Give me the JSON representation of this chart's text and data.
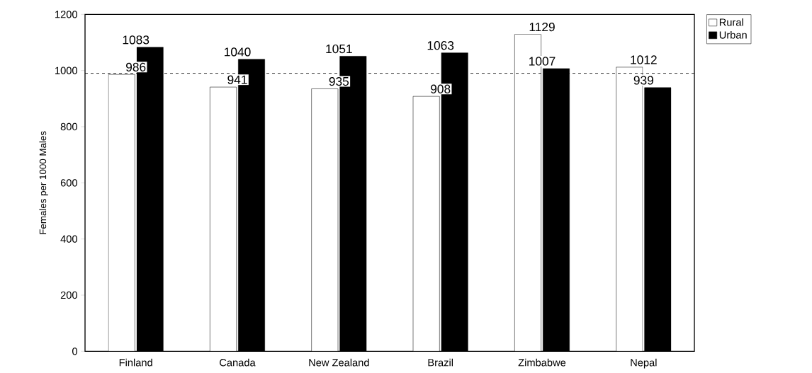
{
  "chart_data": {
    "type": "bar",
    "ylabel": "Females per 1000 Males",
    "categories": [
      "Finland",
      "Canada",
      "New Zealand",
      "Brazil",
      "Zimbabwe",
      "Nepal"
    ],
    "series": [
      {
        "name": "Rural",
        "color": "#ffffff",
        "values": [
          986,
          941,
          935,
          908,
          1129,
          1012
        ]
      },
      {
        "name": "Urban",
        "color": "#000000",
        "values": [
          1083,
          1040,
          1051,
          1063,
          1007,
          939
        ]
      }
    ],
    "ylim": [
      0,
      1200
    ],
    "yticks": [
      0,
      200,
      400,
      600,
      800,
      1000,
      1200
    ],
    "ref_lines": [
      {
        "axis": "y",
        "value": 990,
        "line_style": "dashed"
      }
    ],
    "data_labels": true,
    "legend": "top right",
    "grid": false
  }
}
